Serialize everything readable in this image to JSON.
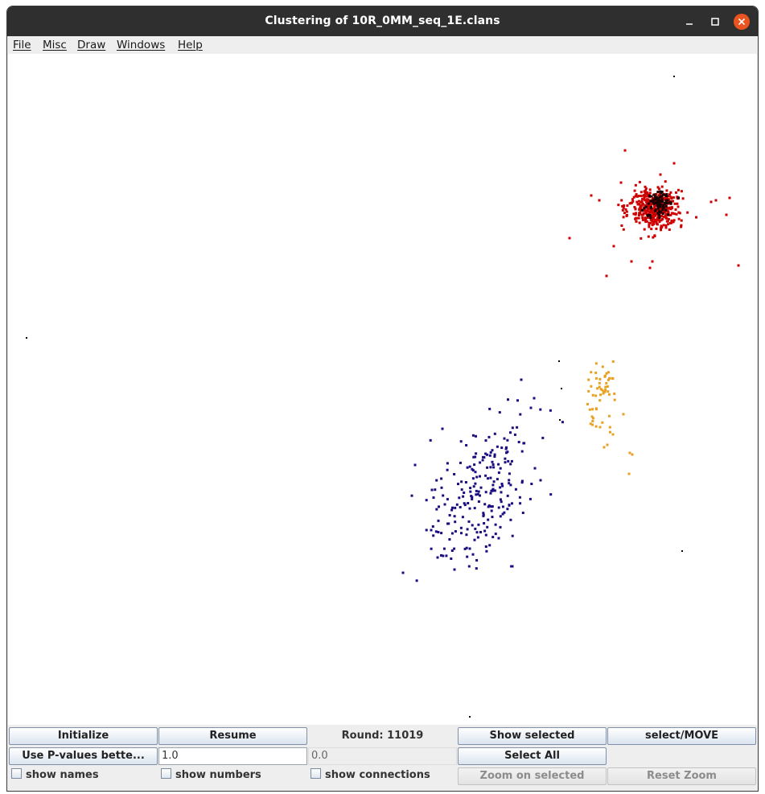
{
  "window": {
    "title": "Clustering of 10R_0MM_seq_1E.clans"
  },
  "menu": [
    {
      "label": "File"
    },
    {
      "label": "Misc"
    },
    {
      "label": "Draw"
    },
    {
      "label": "Windows"
    },
    {
      "label": "Help"
    }
  ],
  "controls": {
    "initialize": "Initialize",
    "resume": "Resume",
    "round": "Round: 11019",
    "show_selected": "Show selected",
    "select_move": "select/MOVE",
    "pvalues": "Use P-values bette...",
    "pvalue_input": "1.0",
    "pvalue_readout": "0.0",
    "select_all": "Select All",
    "show_names": "show names",
    "show_numbers": "show numbers",
    "show_connections": "show connections",
    "zoom_selected": "Zoom on selected",
    "reset_zoom": "Reset Zoom"
  },
  "colors": {
    "red_cluster": "#cc0000",
    "red_core": "#1a0000",
    "blue_cluster": "#1a0d80",
    "orange_cluster": "#e8a020",
    "outlier": "#000000",
    "close_button": "#e95420"
  }
}
